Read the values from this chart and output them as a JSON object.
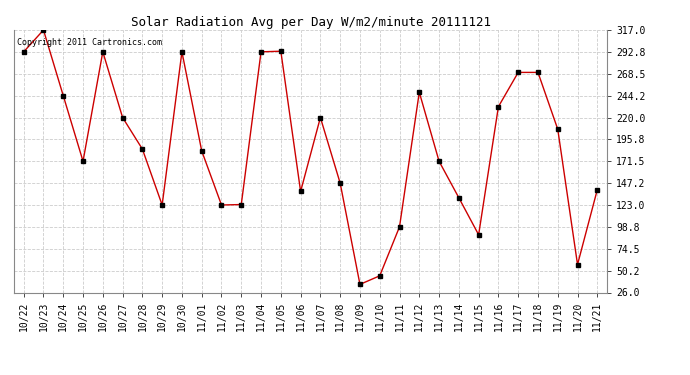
{
  "title": "Solar Radiation Avg per Day W/m2/minute 20111121",
  "copyright": "Copyright 2011 Cartronics.com",
  "dates": [
    "10/22",
    "10/23",
    "10/24",
    "10/25",
    "10/26",
    "10/27",
    "10/28",
    "10/29",
    "10/30",
    "11/01",
    "11/02",
    "11/03",
    "11/04",
    "11/05",
    "11/06",
    "11/07",
    "11/08",
    "11/09",
    "11/10",
    "11/11",
    "11/12",
    "11/13",
    "11/14",
    "11/15",
    "11/16",
    "11/17",
    "11/18",
    "11/19",
    "11/20",
    "11/21"
  ],
  "values": [
    292.8,
    317.0,
    244.2,
    171.5,
    292.8,
    220.0,
    185.0,
    123.0,
    292.8,
    183.0,
    123.0,
    123.5,
    292.8,
    293.5,
    138.0,
    220.0,
    147.2,
    35.0,
    44.5,
    98.8,
    248.0,
    171.5,
    131.0,
    90.0,
    232.0,
    270.0,
    270.0,
    207.0,
    57.0,
    140.0
  ],
  "ylim": [
    26.0,
    317.0
  ],
  "yticks": [
    26.0,
    50.2,
    74.5,
    98.8,
    123.0,
    147.2,
    171.5,
    195.8,
    220.0,
    244.2,
    268.5,
    292.8,
    317.0
  ],
  "line_color": "#cc0000",
  "marker_color": "#000000",
  "bg_color": "#ffffff",
  "grid_color": "#cccccc",
  "title_fontsize": 9,
  "tick_fontsize": 7,
  "copyright_fontsize": 6
}
